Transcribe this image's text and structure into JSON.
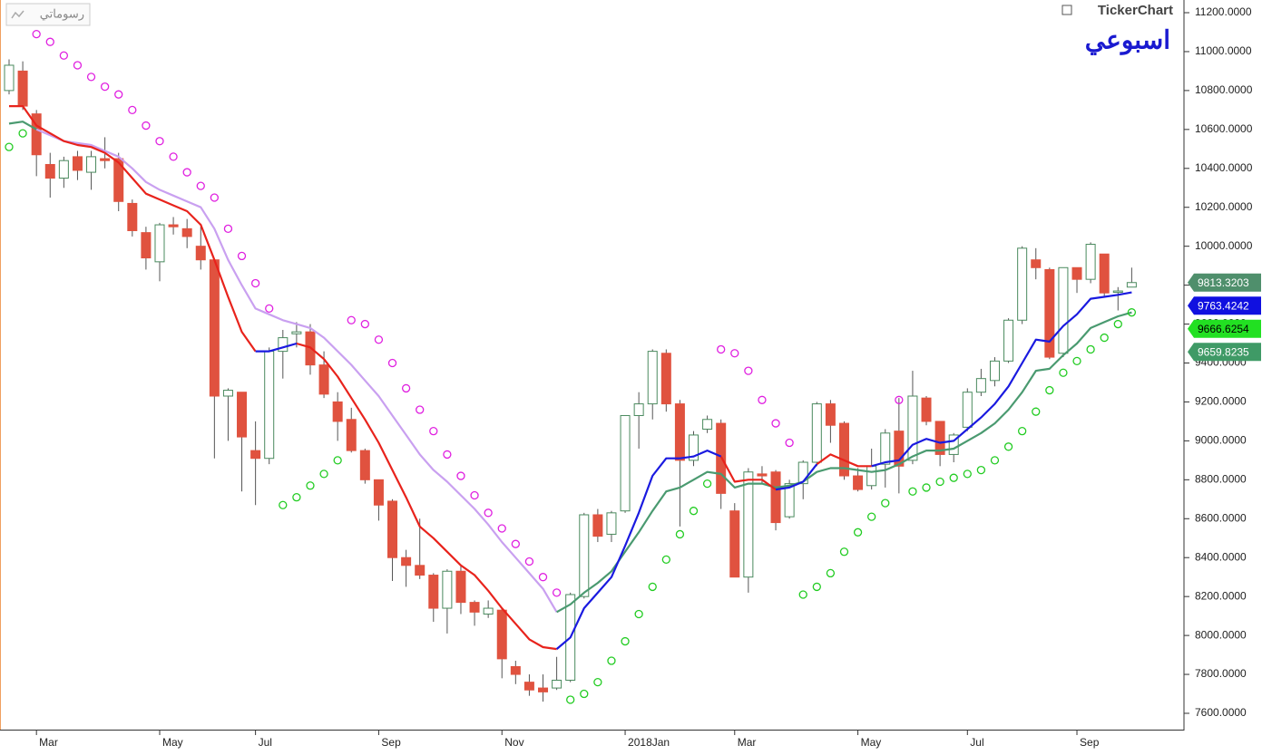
{
  "chart_data": {
    "type": "candlestick",
    "title": "TickerChart",
    "subtitle": "اسبوعي",
    "toolbar_label": "رسوماتي",
    "up_color": "#4a8a5e",
    "down_color": "#e0523f",
    "categories": [
      null,
      null,
      "Mar",
      null,
      null,
      null,
      null,
      null,
      null,
      null,
      null,
      "May",
      null,
      null,
      null,
      null,
      null,
      null,
      "Jul",
      null,
      null,
      null,
      null,
      null,
      null,
      null,
      null,
      "Sep",
      null,
      null,
      null,
      null,
      null,
      null,
      null,
      null,
      "Nov",
      null,
      null,
      null,
      null,
      null,
      null,
      null,
      null,
      "2018Jan",
      null,
      null,
      null,
      null,
      null,
      null,
      null,
      "Mar",
      null,
      null,
      null,
      null,
      null,
      null,
      null,
      null,
      "May",
      null,
      null,
      null,
      null,
      null,
      null,
      null,
      "Jul",
      null,
      null,
      null,
      null,
      null,
      null,
      null,
      "Sep",
      null,
      null,
      null,
      null
    ],
    "open": [
      10800,
      10900,
      10680,
      10420,
      10350,
      10460,
      10380,
      10450,
      10450,
      10220,
      10070,
      9920,
      10110,
      10090,
      10000,
      9930,
      9230,
      9250,
      8950,
      8910,
      9460,
      9550,
      9560,
      9390,
      9200,
      9110,
      8950,
      8800,
      8690,
      8400,
      8360,
      8310,
      8140,
      8330,
      8170,
      8110,
      8130,
      7840,
      7760,
      7730,
      7730,
      7770,
      8200,
      8620,
      8520,
      8640,
      9130,
      9190,
      9450,
      9190,
      8900,
      9060,
      9090,
      8640,
      8300,
      8830,
      8840,
      8610,
      8780,
      8890,
      9190,
      9090,
      8820,
      8770,
      8880,
      9050,
      8900,
      9220,
      9100,
      8930,
      9070,
      9250,
      9310,
      9410,
      9620,
      9930,
      9880,
      9450,
      9890,
      9830,
      9960,
      9770,
      9790
    ],
    "high": [
      10960,
      10950,
      10700,
      10480,
      10460,
      10490,
      10490,
      10560,
      10480,
      10240,
      10100,
      10120,
      10150,
      10140,
      10100,
      9930,
      9270,
      9250,
      9100,
      9480,
      9570,
      9610,
      9600,
      9460,
      9250,
      9170,
      8960,
      8800,
      8700,
      8440,
      8600,
      8320,
      8340,
      8360,
      8180,
      8180,
      8140,
      7870,
      7800,
      7800,
      7890,
      8220,
      8630,
      8650,
      8640,
      9130,
      9250,
      9470,
      9470,
      9210,
      9050,
      9130,
      9110,
      8680,
      8860,
      8870,
      8850,
      8800,
      8900,
      9200,
      9210,
      9100,
      8860,
      8960,
      9060,
      9220,
      9360,
      9230,
      9100,
      9040,
      9270,
      9370,
      9430,
      9630,
      10000,
      9990,
      9890,
      9890,
      9890,
      10020,
      9960,
      9790,
      9890
    ],
    "low": [
      10780,
      10700,
      10360,
      10250,
      10300,
      10340,
      10290,
      10400,
      10180,
      10050,
      9880,
      9820,
      10060,
      9990,
      9880,
      8910,
      9000,
      8740,
      8670,
      8880,
      9320,
      9480,
      9340,
      9220,
      9000,
      8940,
      8780,
      8590,
      8280,
      8250,
      8290,
      8070,
      8010,
      8110,
      8050,
      8090,
      7780,
      7750,
      7690,
      7660,
      7720,
      7760,
      8190,
      8480,
      8480,
      8630,
      8960,
      9110,
      9150,
      8560,
      8870,
      9040,
      8650,
      8300,
      8220,
      8780,
      8540,
      8600,
      8700,
      8870,
      8990,
      8800,
      8740,
      8750,
      8760,
      8730,
      8880,
      9080,
      8870,
      8890,
      9050,
      9230,
      9280,
      9400,
      9600,
      9830,
      9420,
      9430,
      9760,
      9810,
      9740,
      9670,
      9790
    ],
    "close": [
      10930,
      10720,
      10470,
      10350,
      10440,
      10390,
      10460,
      10440,
      10230,
      10080,
      9940,
      10110,
      10100,
      10050,
      9930,
      9230,
      9260,
      9020,
      8910,
      9460,
      9530,
      9560,
      9390,
      9240,
      9100,
      8950,
      8800,
      8670,
      8400,
      8360,
      8310,
      8140,
      8330,
      8170,
      8120,
      8140,
      7880,
      7800,
      7720,
      7710,
      7770,
      8210,
      8620,
      8510,
      8630,
      9130,
      9190,
      9460,
      9190,
      8900,
      9030,
      9110,
      8730,
      8300,
      8840,
      8820,
      8580,
      8780,
      8890,
      9190,
      9080,
      8820,
      8750,
      8870,
      9040,
      8870,
      9230,
      9100,
      8930,
      9030,
      9250,
      9320,
      9410,
      9620,
      9990,
      9890,
      9430,
      9890,
      9830,
      10010,
      9760,
      9770,
      9813.3203
    ],
    "overlays": [
      {
        "style": "line",
        "color": "#c9a0f0",
        "values": [
          null,
          null,
          10600,
          10570,
          10540,
          10530,
          10520,
          10490,
          10460,
          10400,
          10330,
          10290,
          10260,
          10230,
          10200,
          10090,
          9930,
          9800,
          9680,
          9650,
          9620,
          9600,
          9580,
          9530,
          9460,
          9390,
          9310,
          9230,
          9130,
          9030,
          8930,
          8850,
          8790,
          8720,
          8650,
          8570,
          8480,
          8400,
          8320,
          8240,
          8120,
          null,
          null,
          null,
          null,
          null,
          null,
          null,
          null,
          null,
          null,
          null,
          null,
          null,
          null,
          null,
          null,
          null,
          null,
          null,
          null,
          null,
          null,
          null,
          null,
          null,
          null,
          null,
          null,
          null,
          null,
          null,
          null,
          null,
          null,
          null,
          null,
          null,
          null,
          null,
          null,
          null,
          null
        ]
      },
      {
        "style": "line",
        "color": "#4a9a70",
        "values": [
          10630,
          10640,
          10600,
          null,
          null,
          null,
          null,
          null,
          null,
          null,
          null,
          null,
          null,
          null,
          null,
          null,
          null,
          null,
          null,
          null,
          null,
          null,
          null,
          null,
          null,
          null,
          null,
          null,
          null,
          null,
          null,
          null,
          null,
          null,
          null,
          null,
          null,
          null,
          null,
          null,
          8120,
          8160,
          8220,
          8270,
          8330,
          8430,
          8530,
          8640,
          8740,
          8760,
          8800,
          8840,
          8830,
          8760,
          8780,
          8780,
          8760,
          8770,
          8790,
          8840,
          8860,
          8860,
          8850,
          8840,
          8850,
          8880,
          8920,
          8950,
          8950,
          8960,
          9000,
          9040,
          9090,
          9160,
          9250,
          9360,
          9370,
          9440,
          9500,
          9580,
          9610,
          9640,
          9660
        ]
      },
      {
        "style": "line",
        "color": "#e8231c",
        "values": [
          10720,
          10720,
          10620,
          10580,
          10540,
          10520,
          10510,
          10480,
          10430,
          10350,
          10270,
          10240,
          10210,
          10180,
          10110,
          9930,
          9740,
          9560,
          9460,
          null,
          null,
          9500,
          9480,
          9420,
          9330,
          9220,
          9110,
          8990,
          8850,
          8710,
          8560,
          8500,
          8430,
          8360,
          8310,
          8230,
          8140,
          8060,
          7980,
          7940,
          7930,
          null,
          null,
          null,
          null,
          null,
          null,
          null,
          null,
          null,
          null,
          null,
          8920,
          8790,
          8800,
          8800,
          8750,
          null,
          null,
          8880,
          8930,
          8900,
          8870,
          8870,
          null,
          null,
          null,
          null,
          null,
          null,
          null,
          null,
          null,
          null,
          null,
          null,
          null,
          null,
          null,
          null,
          null,
          null,
          null
        ]
      },
      {
        "style": "line",
        "color": "#1a1ae0",
        "values": [
          null,
          null,
          null,
          null,
          null,
          null,
          null,
          null,
          null,
          null,
          null,
          null,
          null,
          null,
          null,
          null,
          null,
          null,
          9460,
          9460,
          9480,
          9500,
          null,
          null,
          null,
          null,
          null,
          null,
          null,
          null,
          null,
          null,
          null,
          null,
          null,
          null,
          null,
          null,
          null,
          null,
          7930,
          7990,
          8140,
          8220,
          8300,
          8460,
          8630,
          8820,
          8910,
          8910,
          8920,
          8950,
          8920,
          null,
          null,
          null,
          8750,
          8760,
          8790,
          8880,
          null,
          null,
          null,
          8870,
          8890,
          8900,
          8980,
          9010,
          8990,
          9000,
          9060,
          9120,
          9190,
          9280,
          9400,
          9520,
          9510,
          9590,
          9650,
          9730,
          9740,
          9750,
          9763
        ]
      },
      {
        "style": "dots",
        "color": "#e020e0",
        "values": [
          null,
          null,
          11090,
          11050,
          10980,
          10930,
          10870,
          10820,
          10780,
          10700,
          10620,
          10540,
          10460,
          10380,
          10310,
          10250,
          10090,
          9950,
          9810,
          9680,
          null,
          null,
          null,
          null,
          null,
          9620,
          9600,
          9520,
          9400,
          9270,
          9160,
          9050,
          8930,
          8820,
          8720,
          8630,
          8550,
          8470,
          8380,
          8300,
          8220,
          null,
          null,
          null,
          null,
          null,
          null,
          null,
          null,
          null,
          null,
          null,
          9470,
          9450,
          9360,
          9210,
          9090,
          8990,
          null,
          null,
          null,
          null,
          null,
          null,
          null,
          9210,
          null,
          null,
          null,
          null,
          null,
          null,
          null,
          null,
          null,
          null,
          null,
          null,
          null,
          null,
          null,
          null,
          null
        ]
      },
      {
        "style": "dots",
        "color": "#22cc22",
        "values": [
          10510,
          10580,
          null,
          null,
          null,
          null,
          null,
          null,
          null,
          null,
          null,
          null,
          null,
          null,
          null,
          null,
          null,
          null,
          null,
          null,
          8670,
          8710,
          8770,
          8830,
          8900,
          null,
          null,
          null,
          null,
          null,
          null,
          null,
          null,
          null,
          null,
          null,
          null,
          null,
          null,
          null,
          null,
          7670,
          7700,
          7760,
          7870,
          7970,
          8110,
          8250,
          8390,
          8520,
          8640,
          8780,
          null,
          null,
          null,
          null,
          null,
          null,
          8210,
          8250,
          8320,
          8430,
          8530,
          8610,
          8680,
          null,
          8740,
          8760,
          8790,
          8810,
          8830,
          8850,
          8900,
          8970,
          9050,
          9150,
          9260,
          9350,
          9410,
          9470,
          9530,
          9600,
          9660
        ]
      }
    ],
    "price_tags": [
      {
        "value": 9813.3203,
        "color": "#4f8f6c",
        "text_color": "#ffffff"
      },
      {
        "value": 9763.4242,
        "color": "#1010e0",
        "text_color": "#ffffff"
      },
      {
        "value": 9666.6254,
        "color": "#22e022",
        "text_color": "#000000"
      },
      {
        "value": 9659.8235,
        "color": "#3f9a66",
        "text_color": "#ffffff"
      }
    ],
    "ylim": [
      7600,
      11200
    ],
    "yticks": [
      {
        "value": 7600,
        "label": "7600.0000"
      },
      {
        "value": 7800,
        "label": "7800.0000"
      },
      {
        "value": 8000,
        "label": "8000.0000"
      },
      {
        "value": 8200,
        "label": "8200.0000"
      },
      {
        "value": 8400,
        "label": "8400.0000"
      },
      {
        "value": 8600,
        "label": "8600.0000"
      },
      {
        "value": 8800,
        "label": "8800.0000"
      },
      {
        "value": 9000,
        "label": "9000.0000"
      },
      {
        "value": 9200,
        "label": "9200.0000"
      },
      {
        "value": 9400,
        "label": "9400.0000"
      },
      {
        "value": 9600,
        "label": "9600.0000"
      },
      {
        "value": 9800,
        "label": "9800.0000"
      },
      {
        "value": 10000,
        "label": "10000.0000"
      },
      {
        "value": 10200,
        "label": "10200.0000"
      },
      {
        "value": 10400,
        "label": "10400.0000"
      },
      {
        "value": 10600,
        "label": "10600.0000"
      },
      {
        "value": 10800,
        "label": "10800.0000"
      },
      {
        "value": 11000,
        "label": "11000.0000"
      },
      {
        "value": 11200,
        "label": "11200.0000"
      }
    ]
  }
}
